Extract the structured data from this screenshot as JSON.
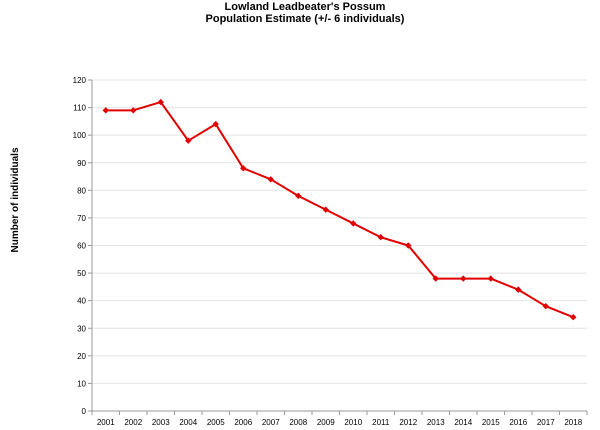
{
  "chart_data": {
    "type": "line",
    "title": "Lowland Leadbeater's Possum",
    "subtitle": "Population Estimate (+/- 6 individuals)",
    "xlabel": "",
    "ylabel": "Number of individuals",
    "ylim": [
      0,
      120
    ],
    "yticks": [
      0,
      10,
      20,
      30,
      40,
      50,
      60,
      70,
      80,
      90,
      100,
      110,
      120
    ],
    "grid": true,
    "legend": "none",
    "x": [
      "2001",
      "2002",
      "2003",
      "2004",
      "2005",
      "2006",
      "2007",
      "2008",
      "2009",
      "2010",
      "2011",
      "2012",
      "2013",
      "2014",
      "2015",
      "2016",
      "2017",
      "2018"
    ],
    "values": [
      109,
      109,
      112,
      98,
      104,
      88,
      84,
      78,
      73,
      68,
      63,
      60,
      48,
      48,
      48,
      44,
      38,
      34
    ],
    "color": "#e00000"
  }
}
